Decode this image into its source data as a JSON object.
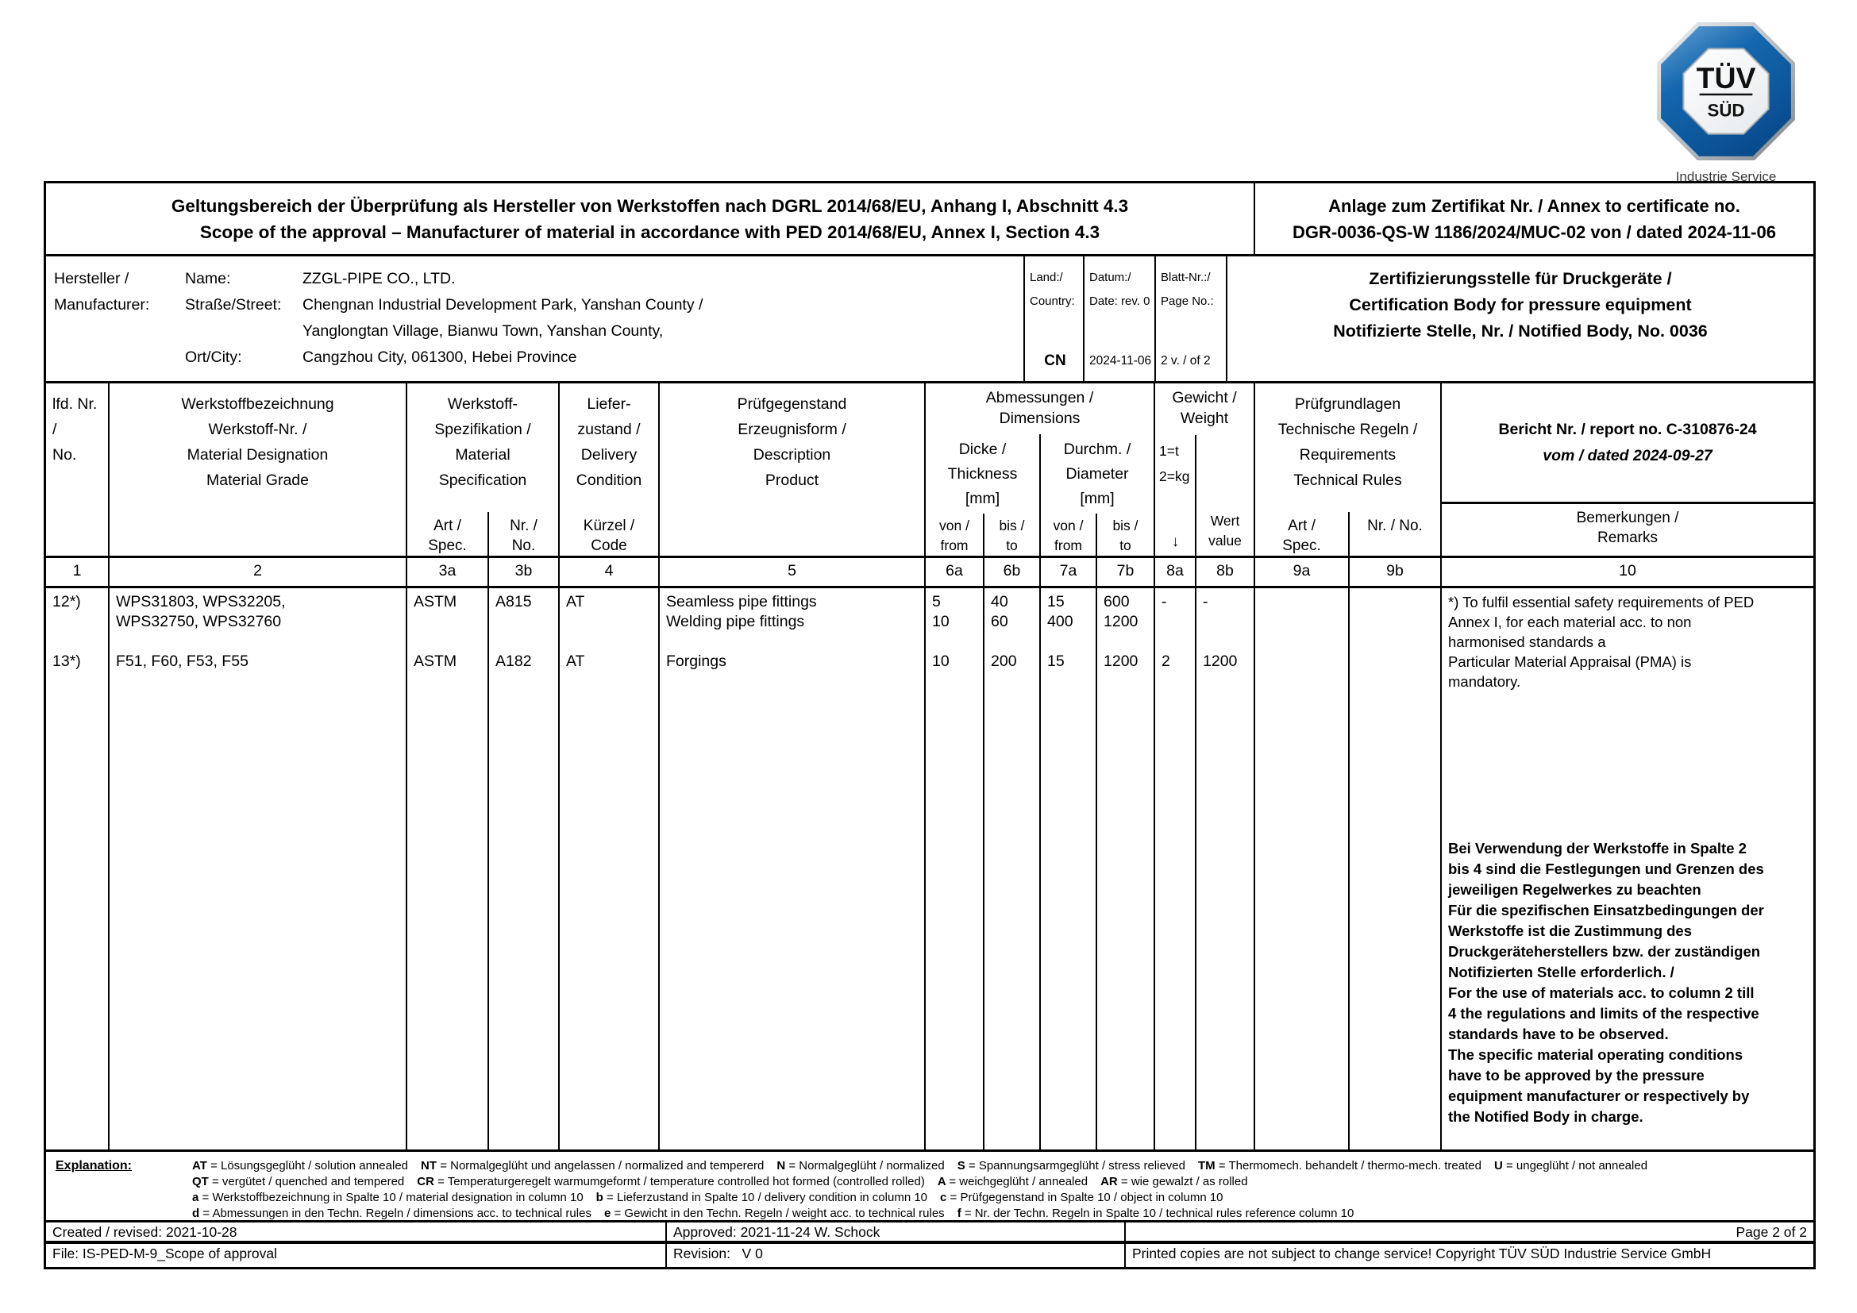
{
  "logo": {
    "line1": "TÜV",
    "line2": "SÜD",
    "subtitle": "Industrie Service",
    "blue": "#0f5ba5",
    "blue_dark": "#084a8c",
    "blue_light": "#5e9bd0"
  },
  "title": {
    "left_de": "Geltungsbereich der Überprüfung als Hersteller von Werkstoffen nach DGRL 2014/68/EU, Anhang I, Abschnitt 4.3",
    "left_en": "Scope of the approval – Manufacturer of material in accordance with PED 2014/68/EU, Annex I, Section 4.3",
    "annex_line1": "Anlage zum Zertifikat Nr. / Annex to certificate no.",
    "annex_line2": "DGR-0036-QS-W 1186/2024/MUC-02 von / dated 2024-11-06"
  },
  "manufacturer": {
    "label": "Hersteller /\nManufacturer:",
    "field_labels": "Name:\nStraße/Street:\n\nOrt/City:",
    "field_values": "ZZGL-PIPE CO., LTD.\nChengnan Industrial Development Park, Yanshan County /\nYanglongtan Village, Bianwu Town, Yanshan County,\nCangzhou City, 061300, Hebei Province",
    "country_label": "Land:/\nCountry:",
    "country": "CN",
    "date_label": "Datum:/\nDate: rev. 0",
    "date": "2024-11-06",
    "page_label": "Blatt-Nr.:/\nPage No.:",
    "page": "2 v. / of 2",
    "cert_body": "Zertifizierungsstelle für Druckgeräte /\nCertification Body for pressure equipment\nNotifizierte Stelle, Nr. / Notified Body, No. 0036"
  },
  "table": {
    "headers": {
      "no": "lfd. Nr.\n/\nNo.",
      "designation": "Werkstoffbezeichnung\nWerkstoff-Nr. /\nMaterial Designation\nMaterial Grade",
      "spec_group": "Werkstoff-\nSpezifikation /\nMaterial\nSpecification",
      "spec_art": "Art /\nSpec.",
      "spec_nr": "Nr. /\nNo.",
      "delivery": "Liefer-\nzustand /\nDelivery\nCondition",
      "delivery_code": "Kürzel /\nCode",
      "product": "Prüfgegenstand\nErzeugnisform /\nDescription\nProduct",
      "dimensions": "Abmessungen /\nDimensions",
      "thickness": "Dicke /\nThickness\n[mm]",
      "diameter": "Durchm. /\nDiameter\n[mm]",
      "from": "von /\nfrom",
      "to": "bis /\nto",
      "weight": "Gewicht /\nWeight",
      "weight_units": "1=t\n2=kg",
      "weight_arrow": "↓",
      "weight_value": "Wert\nvalue",
      "rules": "Prüfgrundlagen\nTechnische Regeln /\nRequirements\nTechnical Rules",
      "rules_art": "Art /\nSpec.",
      "rules_nr": "Nr. / No.",
      "report_line1": "Bericht Nr. / report no. C-310876-24",
      "report_line2": "vom / dated 2024-09-27",
      "remarks": "Bemerkungen /\nRemarks"
    },
    "col_numbers": [
      "1",
      "2",
      "3a",
      "3b",
      "4",
      "5",
      "6a",
      "6b",
      "7a",
      "7b",
      "8a",
      "8b",
      "9a",
      "9b",
      "10"
    ],
    "rows": [
      {
        "no": "12*)",
        "designation": "WPS31803, WPS32205,\nWPS32750, WPS32760",
        "spec_art": "ASTM",
        "spec_nr": "A815",
        "code": "AT",
        "product": "Seamless pipe fittings\nWelding pipe fittings",
        "thickness_from": "5\n10",
        "thickness_to": "40\n60",
        "diameter_from": "15\n400",
        "diameter_to": "600\n1200",
        "weight_unit": "-",
        "weight_value": "-",
        "rules_art": "",
        "rules_nr": ""
      },
      {
        "no": "13*)",
        "designation": "F51, F60, F53, F55",
        "spec_art": "ASTM",
        "spec_nr": "A182",
        "code": "AT",
        "product": "Forgings",
        "thickness_from": "10",
        "thickness_to": "200",
        "diameter_from": "15",
        "diameter_to": "1200",
        "weight_unit": "2",
        "weight_value": "1200",
        "rules_art": "",
        "rules_nr": ""
      }
    ],
    "remarks_note": "*) To fulfil essential safety requirements of PED\nAnnex I, for each material acc. to non\nharmonised standards a\nParticular Material Appraisal (PMA) is\nmandatory.",
    "remarks_usage": "Bei Verwendung der Werkstoffe in Spalte 2\nbis 4 sind die Festlegungen und Grenzen des\njeweiligen Regelwerkes zu beachten\nFür die spezifischen Einsatzbedingungen der\nWerkstoffe ist die Zustimmung des\nDruckgeräteherstellers bzw. der zuständigen\nNotifizierten Stelle erforderlich. /\nFor the use of materials acc. to column 2 till\n4 the regulations and limits of the respective\nstandards have to be observed.\nThe specific material operating conditions\nhave to be approved by the pressure\nequipment manufacturer or respectively by\nthe Notified Body in charge."
  },
  "explanation": {
    "label": "Explanation:",
    "lines": [
      [
        {
          "k": "AT",
          "t": "= Lösungsgeglüht / solution annealed"
        },
        {
          "k": "NT",
          "t": "= Normalgeglüht und angelassen / normalized and tempererd"
        },
        {
          "k": "N",
          "t": "= Normalgeglüht / normalized"
        },
        {
          "k": "S",
          "t": "= Spannungsarmgeglüht / stress relieved"
        },
        {
          "k": "TM",
          "t": "= Thermomech. behandelt / thermo-mech. treated"
        },
        {
          "k": "U",
          "t": "= ungeglüht / not annealed"
        }
      ],
      [
        {
          "k": "QT",
          "t": "= vergütet / quenched and tempered"
        },
        {
          "k": "CR",
          "t": "= Temperaturgeregelt warmumgeformt / temperature controlled hot formed (controlled rolled)"
        },
        {
          "k": "A",
          "t": "=  weichgeglüht / annealed"
        },
        {
          "k": "AR",
          "t": "= wie gewalzt / as rolled"
        }
      ],
      [
        {
          "k": "a",
          "t": "= Werkstoffbezeichnung in Spalte 10 / material designation in column 10"
        },
        {
          "k": "b",
          "t": "= Lieferzustand in Spalte 10 / delivery condition in column 10"
        },
        {
          "k": "c",
          "t": "= Prüfgegenstand in Spalte 10 / object in column 10"
        }
      ],
      [
        {
          "k": "d",
          "t": "= Abmessungen in den Techn. Regeln / dimensions acc. to technical rules"
        },
        {
          "k": "e",
          "t": "= Gewicht in den Techn. Regeln / weight acc. to technical rules"
        },
        {
          "k": "f",
          "t": "= Nr. der Techn. Regeln in Spalte 10 / technical rules reference column 10"
        }
      ]
    ]
  },
  "footer": {
    "created": "Created / revised: 2021-10-28",
    "approved": "Approved: 2021-11-24 W. Schock",
    "page": "Page 2 of 2",
    "file": "File: IS-PED-M-9_Scope of approval",
    "revision": "Revision:   V 0",
    "copyright": "Printed copies are not subject to change service! Copyright TÜV SÜD Industrie Service GmbH"
  }
}
